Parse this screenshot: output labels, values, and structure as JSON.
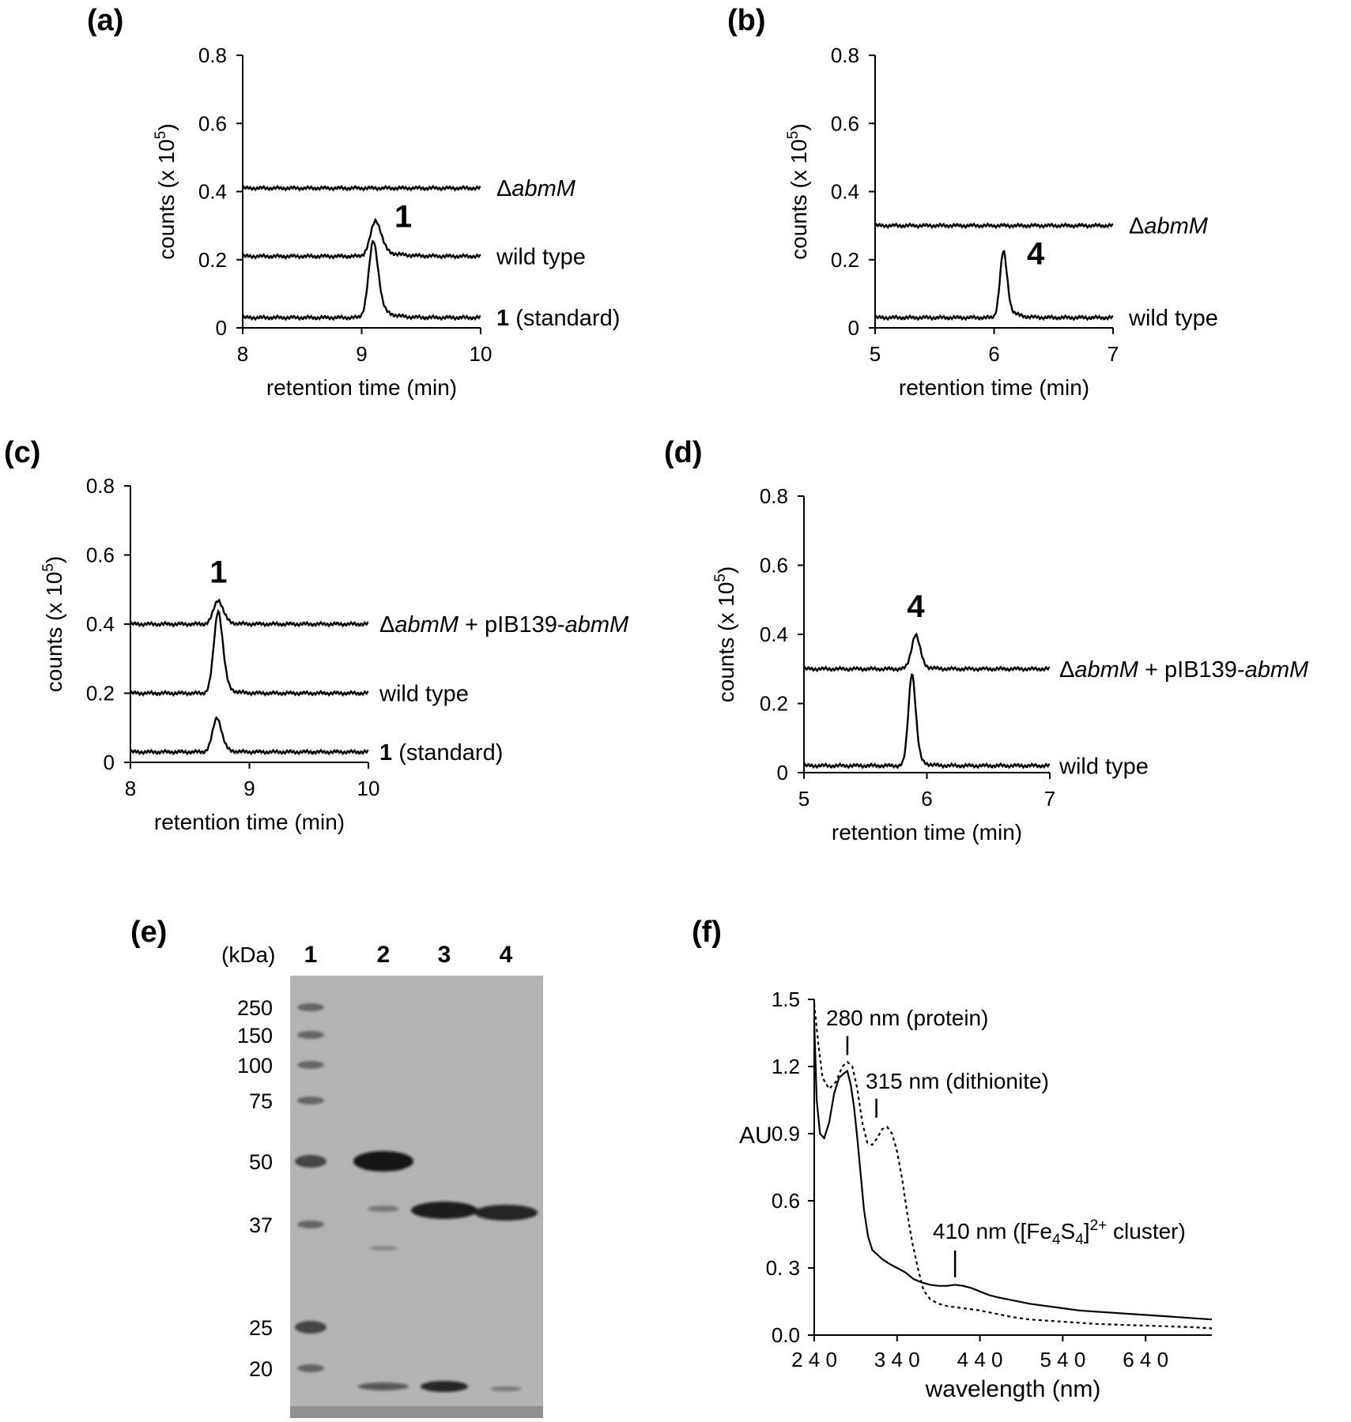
{
  "chart_data": [
    {
      "panel": "(a)",
      "type": "line",
      "xlabel": "retention time (min)",
      "ylabel_main": "counts (x 10",
      "ylabel_sup": "5",
      "ylabel_end": ")",
      "xlim": [
        8,
        10
      ],
      "ylim": [
        0,
        0.8
      ],
      "xticks": [
        "8",
        "9",
        "10"
      ],
      "yticks": [
        "0",
        "0.2",
        "0.4",
        "0.6",
        "0.8"
      ],
      "peak_label": "1",
      "series": [
        {
          "baseline": 0.41,
          "peaks": [],
          "label_prefix_delta": "Δ",
          "label_italic": "abmM",
          "label_bold": "",
          "label_rest": ""
        },
        {
          "baseline": 0.21,
          "peaks": [
            {
              "x": 9.12,
              "h": 0.105,
              "w": 0.045,
              "tail": 0.13
            }
          ],
          "label_prefix_delta": "",
          "label_italic": "",
          "label_bold": "",
          "label_rest": "wild type"
        },
        {
          "baseline": 0.03,
          "peaks": [
            {
              "x": 9.1,
              "h": 0.225,
              "w": 0.04,
              "tail": 0.09
            }
          ],
          "label_prefix_delta": "",
          "label_italic": "",
          "label_bold": "1",
          "label_rest": " (standard)"
        }
      ]
    },
    {
      "panel": "(b)",
      "type": "line",
      "xlabel": "retention time (min)",
      "ylabel_main": "counts (x 10",
      "ylabel_sup": "5",
      "ylabel_end": ")",
      "xlim": [
        5,
        7
      ],
      "ylim": [
        0,
        0.8
      ],
      "xticks": [
        "5",
        "6",
        "7"
      ],
      "yticks": [
        "0",
        "0.2",
        "0.4",
        "0.6",
        "0.8"
      ],
      "peak_label": "4",
      "series": [
        {
          "baseline": 0.3,
          "peaks": [],
          "label_prefix_delta": "Δ",
          "label_italic": "abmM",
          "label_bold": "",
          "label_rest": ""
        },
        {
          "baseline": 0.03,
          "peaks": [
            {
              "x": 6.08,
              "h": 0.195,
              "w": 0.03,
              "tail": 0.07
            }
          ],
          "label_prefix_delta": "",
          "label_italic": "",
          "label_bold": "",
          "label_rest": "wild type"
        }
      ]
    },
    {
      "panel": "(c)",
      "type": "line",
      "xlabel": "retention time (min)",
      "ylabel_main": "counts (x 10",
      "ylabel_sup": "5",
      "ylabel_end": ")",
      "xlim": [
        8,
        10
      ],
      "ylim": [
        0,
        0.8
      ],
      "xticks": [
        "8",
        "9",
        "10"
      ],
      "yticks": [
        "0",
        "0.2",
        "0.4",
        "0.6",
        "0.8"
      ],
      "peak_label": "1",
      "series": [
        {
          "baseline": 0.4,
          "peaks": [
            {
              "x": 8.74,
              "h": 0.07,
              "w": 0.04,
              "tail": 0.07
            }
          ],
          "label_prefix_delta": "Δ",
          "label_italic": "abmM",
          "label_bold": "",
          "label_rest": " + pIB139-",
          "label_italic2": "abmM"
        },
        {
          "baseline": 0.2,
          "peaks": [
            {
              "x": 8.74,
              "h": 0.24,
              "w": 0.038,
              "tail": 0.06
            }
          ],
          "label_prefix_delta": "",
          "label_italic": "",
          "label_bold": "",
          "label_rest": "wild type"
        },
        {
          "baseline": 0.03,
          "peaks": [
            {
              "x": 8.73,
              "h": 0.1,
              "w": 0.038,
              "tail": 0.06
            }
          ],
          "label_prefix_delta": "",
          "label_italic": "",
          "label_bold": "1",
          "label_rest": " (standard)"
        }
      ]
    },
    {
      "panel": "(d)",
      "type": "line",
      "xlabel": "retention time (min)",
      "ylabel_main": "counts (x 10",
      "ylabel_sup": "5",
      "ylabel_end": ")",
      "xlim": [
        5,
        7
      ],
      "ylim": [
        0,
        0.8
      ],
      "xticks": [
        "5",
        "6",
        "7"
      ],
      "yticks": [
        "0",
        "0.2",
        "0.4",
        "0.6",
        "0.8"
      ],
      "peak_label": "4",
      "series": [
        {
          "baseline": 0.3,
          "peaks": [
            {
              "x": 5.91,
              "h": 0.1,
              "w": 0.035,
              "tail": 0.06
            }
          ],
          "label_prefix_delta": "Δ",
          "label_italic": "abmM",
          "label_bold": "",
          "label_rest": " + pIB139-",
          "label_italic2": "abmM"
        },
        {
          "baseline": 0.02,
          "peaks": [
            {
              "x": 5.88,
              "h": 0.27,
              "w": 0.03,
              "tail": 0.05
            }
          ],
          "label_prefix_delta": "",
          "label_italic": "",
          "label_bold": "",
          "label_rest": "wild type"
        }
      ]
    },
    {
      "panel": "(f)",
      "type": "line",
      "xlabel": "wavelength (nm)",
      "ylabel": "AU",
      "xlim": [
        240,
        720
      ],
      "ylim": [
        0,
        1.5
      ],
      "xticks": [
        "2 4 0",
        "3 4 0",
        "4 4 0",
        "5 4 0",
        "6 4 0"
      ],
      "xtick_values": [
        240,
        340,
        440,
        540,
        640
      ],
      "yticks": [
        "0.0",
        "0. 3",
        "0.6",
        "0.9",
        "1.2",
        "1.5"
      ],
      "ytick_values": [
        0,
        0.3,
        0.6,
        0.9,
        1.2,
        1.5
      ],
      "series": [
        {
          "style": "solid",
          "x": [
            240,
            243,
            247,
            252,
            258,
            264,
            270,
            276,
            280,
            284,
            288,
            292,
            296,
            300,
            305,
            310,
            316,
            322,
            330,
            340,
            350,
            360,
            370,
            380,
            390,
            400,
            410,
            420,
            430,
            440,
            450,
            460,
            480,
            500,
            520,
            540,
            560,
            580,
            600,
            620,
            640,
            660,
            680,
            700,
            720
          ],
          "y": [
            1.4,
            1.05,
            0.9,
            0.88,
            0.95,
            1.08,
            1.15,
            1.17,
            1.18,
            1.12,
            1.02,
            0.88,
            0.72,
            0.56,
            0.44,
            0.38,
            0.36,
            0.34,
            0.32,
            0.3,
            0.28,
            0.25,
            0.235,
            0.225,
            0.22,
            0.22,
            0.225,
            0.22,
            0.21,
            0.195,
            0.18,
            0.17,
            0.155,
            0.14,
            0.13,
            0.12,
            0.11,
            0.105,
            0.1,
            0.095,
            0.09,
            0.085,
            0.08,
            0.075,
            0.07
          ]
        },
        {
          "style": "dotted",
          "x": [
            240,
            245,
            250,
            258,
            266,
            274,
            280,
            286,
            292,
            298,
            304,
            310,
            316,
            322,
            328,
            334,
            340,
            346,
            352,
            358,
            365,
            372,
            380,
            390,
            400,
            420,
            440,
            460,
            480,
            500,
            540,
            580,
            620,
            660,
            700,
            720
          ],
          "y": [
            1.48,
            1.3,
            1.15,
            1.1,
            1.13,
            1.2,
            1.22,
            1.2,
            1.1,
            0.95,
            0.86,
            0.85,
            0.88,
            0.92,
            0.93,
            0.9,
            0.82,
            0.7,
            0.55,
            0.42,
            0.3,
            0.2,
            0.16,
            0.14,
            0.13,
            0.12,
            0.11,
            0.095,
            0.08,
            0.07,
            0.06,
            0.05,
            0.045,
            0.04,
            0.035,
            0.03
          ]
        }
      ],
      "annotations": [
        {
          "x": 280,
          "label": "280 nm (protein)"
        },
        {
          "x": 315,
          "label": "315 nm (dithionite)"
        },
        {
          "x": 410,
          "label_main": "410 nm ([Fe",
          "sub1": "4",
          "mid": "S",
          "sub2": "4",
          "close": "]",
          "sup": "2+",
          "rest": " cluster)"
        }
      ]
    }
  ],
  "gel": {
    "panel": "(e)",
    "unit_label": "(kDa)",
    "lanes": [
      "1",
      "2",
      "3",
      "4"
    ],
    "ladder_kda": [
      "250",
      "150",
      "100",
      "75",
      "50",
      "37",
      "25",
      "20"
    ]
  }
}
